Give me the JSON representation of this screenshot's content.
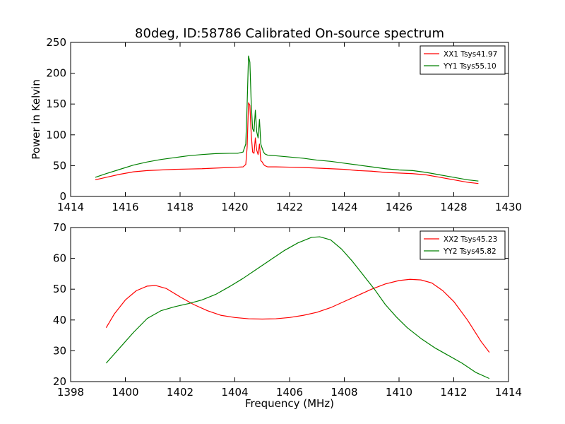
{
  "figure": {
    "title": "80deg, ID:58786 Calibrated On-source spectrum"
  },
  "chart_data": [
    {
      "type": "line",
      "xlabel": "",
      "ylabel": "Power in Kelvin",
      "xlim": [
        1414,
        1430
      ],
      "ylim": [
        0,
        250
      ],
      "xticks": [
        "1414",
        "1416",
        "1418",
        "1420",
        "1422",
        "1424",
        "1426",
        "1428",
        "1430"
      ],
      "yticks": [
        "0",
        "50",
        "100",
        "150",
        "200",
        "250"
      ],
      "legend_position": "top-right",
      "series": [
        {
          "name": "XX1 Tsys41.97",
          "color": "#ff0000",
          "x": [
            1414.9,
            1415.3,
            1415.8,
            1416.3,
            1416.8,
            1417.3,
            1417.8,
            1418.3,
            1418.8,
            1419.3,
            1419.8,
            1420.1,
            1420.3,
            1420.4,
            1420.45,
            1420.5,
            1420.55,
            1420.6,
            1420.65,
            1420.7,
            1420.75,
            1420.8,
            1420.85,
            1420.9,
            1420.95,
            1421.0,
            1421.05,
            1421.1,
            1421.2,
            1421.5,
            1422.0,
            1422.5,
            1423.0,
            1423.5,
            1424.0,
            1424.5,
            1425.0,
            1425.5,
            1426.0,
            1426.5,
            1427.0,
            1427.5,
            1428.0,
            1428.5,
            1428.9
          ],
          "y": [
            27,
            31,
            36,
            40,
            42,
            43,
            44,
            44.5,
            45,
            46,
            47,
            47.5,
            48,
            52,
            80,
            152,
            148,
            100,
            72,
            70,
            95,
            75,
            68,
            85,
            58,
            56,
            52,
            50,
            48,
            48,
            47.5,
            47,
            46,
            45,
            44,
            42,
            41,
            39,
            38,
            37,
            35,
            31,
            27,
            23,
            21
          ]
        },
        {
          "name": "YY1 Tsys55.10",
          "color": "#008000",
          "x": [
            1414.9,
            1415.3,
            1415.8,
            1416.3,
            1416.8,
            1417.3,
            1417.8,
            1418.3,
            1418.8,
            1419.3,
            1419.8,
            1420.1,
            1420.3,
            1420.4,
            1420.45,
            1420.5,
            1420.55,
            1420.6,
            1420.65,
            1420.7,
            1420.75,
            1420.8,
            1420.85,
            1420.9,
            1420.95,
            1421.0,
            1421.05,
            1421.1,
            1421.2,
            1421.5,
            1422.0,
            1422.5,
            1423.0,
            1423.5,
            1424.0,
            1424.5,
            1425.0,
            1425.5,
            1426.0,
            1426.5,
            1427.0,
            1427.5,
            1428.0,
            1428.5,
            1428.9
          ],
          "y": [
            31,
            37,
            44,
            51,
            56,
            60,
            63,
            66,
            68,
            69.5,
            70,
            70,
            72,
            85,
            150,
            228,
            218,
            150,
            110,
            105,
            140,
            105,
            95,
            125,
            85,
            78,
            72,
            69,
            67,
            66,
            64,
            62,
            59,
            57,
            54,
            51,
            48,
            45,
            43,
            42,
            39,
            35,
            31,
            27,
            25
          ]
        }
      ]
    },
    {
      "type": "line",
      "xlabel": "Frequency (MHz)",
      "ylabel": "",
      "xlim": [
        1398,
        1414
      ],
      "ylim": [
        20,
        70
      ],
      "xticks": [
        "1398",
        "1400",
        "1402",
        "1404",
        "1406",
        "1408",
        "1410",
        "1412",
        "1414"
      ],
      "yticks": [
        "20",
        "30",
        "40",
        "50",
        "60",
        "70"
      ],
      "legend_position": "top-right",
      "series": [
        {
          "name": "XX2 Tsys45.23",
          "color": "#ff0000",
          "x": [
            1399.3,
            1399.6,
            1400.0,
            1400.4,
            1400.8,
            1401.1,
            1401.5,
            1402.0,
            1402.5,
            1403.0,
            1403.5,
            1404.0,
            1404.5,
            1405.0,
            1405.5,
            1406.0,
            1406.5,
            1407.0,
            1407.5,
            1408.0,
            1408.5,
            1409.0,
            1409.5,
            1410.0,
            1410.4,
            1410.8,
            1411.2,
            1411.6,
            1412.0,
            1412.5,
            1413.0,
            1413.3
          ],
          "y": [
            37.5,
            42,
            46.5,
            49.5,
            51,
            51.2,
            50.2,
            47.5,
            45,
            43,
            41.5,
            40.8,
            40.4,
            40.3,
            40.4,
            40.8,
            41.5,
            42.5,
            44,
            46,
            48,
            50,
            51.7,
            52.8,
            53.2,
            53,
            52,
            49.5,
            46,
            40,
            33,
            29.5
          ]
        },
        {
          "name": "YY2 Tsys45.82",
          "color": "#008000",
          "x": [
            1399.3,
            1399.8,
            1400.3,
            1400.8,
            1401.3,
            1401.8,
            1402.3,
            1402.8,
            1403.3,
            1403.8,
            1404.3,
            1404.8,
            1405.3,
            1405.8,
            1406.3,
            1406.8,
            1407.1,
            1407.5,
            1407.9,
            1408.3,
            1408.7,
            1409.1,
            1409.5,
            1409.9,
            1410.3,
            1410.8,
            1411.3,
            1411.8,
            1412.3,
            1412.8,
            1413.3
          ],
          "y": [
            26,
            31,
            36,
            40.5,
            43,
            44.3,
            45.3,
            46.5,
            48.3,
            50.8,
            53.5,
            56.5,
            59.5,
            62.5,
            65,
            66.8,
            67,
            66,
            63,
            59,
            54.5,
            50,
            45,
            41,
            37.5,
            34,
            31,
            28.5,
            26,
            23,
            21
          ]
        }
      ]
    }
  ]
}
